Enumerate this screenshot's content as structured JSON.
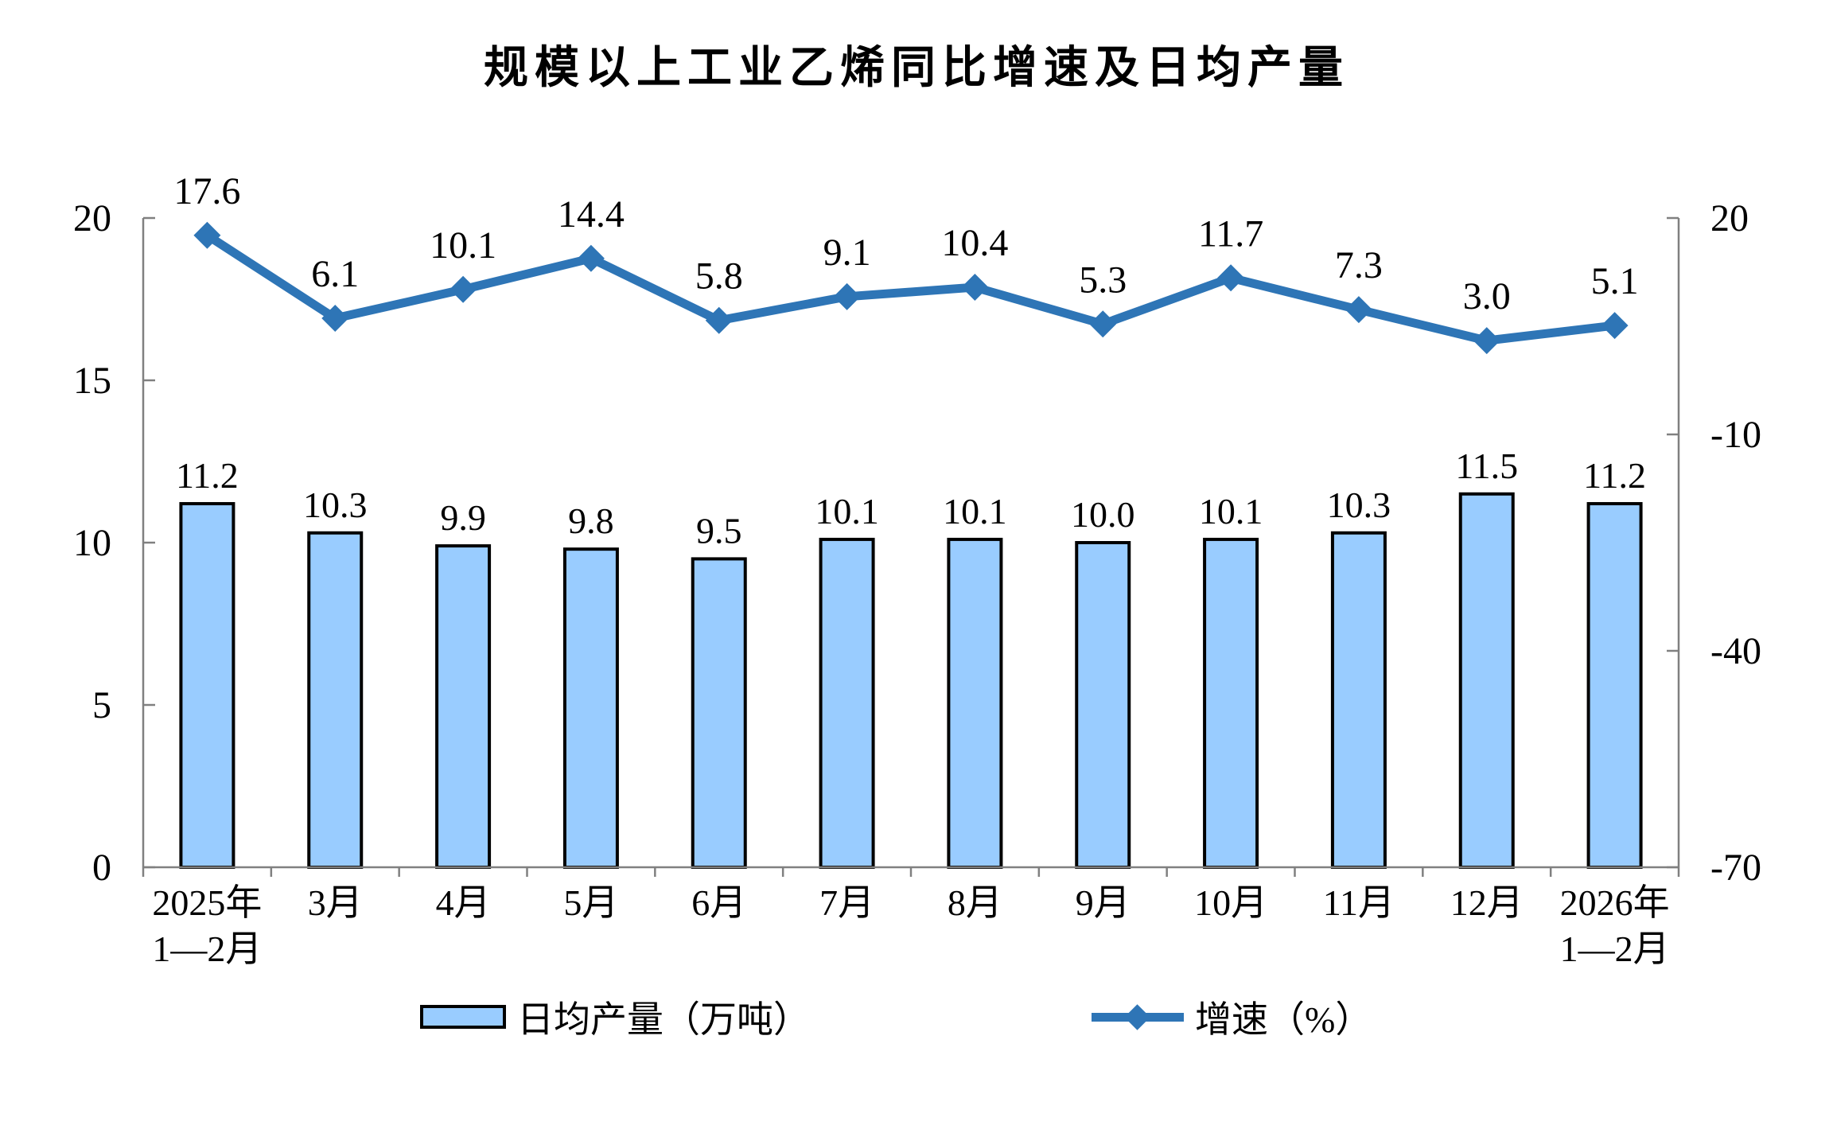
{
  "title": "规模以上工业乙烯同比增速及日均产量",
  "legend": {
    "bar_label": "日均产量（万吨）",
    "line_label": "增速（%）"
  },
  "chart_data": {
    "type": "bar",
    "subtype": "dual-axis bar + line combo",
    "title": "规模以上工业乙烯同比增速及日均产量",
    "categories": [
      "2025年\n1—2月",
      "3月",
      "4月",
      "5月",
      "6月",
      "7月",
      "8月",
      "9月",
      "10月",
      "11月",
      "12月",
      "2026年\n1—2月"
    ],
    "series": [
      {
        "name": "日均产量（万吨）",
        "type": "bar",
        "axis": "left",
        "values": [
          11.2,
          10.3,
          9.9,
          9.8,
          9.5,
          10.1,
          10.1,
          10.0,
          10.1,
          10.3,
          11.5,
          11.2
        ]
      },
      {
        "name": "增速（%）",
        "type": "line",
        "axis": "right",
        "values": [
          17.6,
          6.1,
          10.1,
          14.4,
          5.8,
          9.1,
          10.4,
          5.3,
          11.7,
          7.3,
          3.0,
          5.1
        ]
      }
    ],
    "left_axis": {
      "range": [
        0,
        20
      ],
      "ticks": [
        20,
        15,
        10,
        5,
        0
      ]
    },
    "right_axis": {
      "range": [
        -70,
        20
      ],
      "ticks": [
        20,
        -10,
        -40,
        -70
      ]
    },
    "grid": false,
    "legend_position": "bottom",
    "data_labels": true,
    "colors": {
      "bar_fill": "#99CCFF",
      "bar_stroke": "#000000",
      "line": "#2E75B6",
      "axis": "#808080",
      "text": "#000000",
      "background": "#FFFFFF"
    }
  }
}
